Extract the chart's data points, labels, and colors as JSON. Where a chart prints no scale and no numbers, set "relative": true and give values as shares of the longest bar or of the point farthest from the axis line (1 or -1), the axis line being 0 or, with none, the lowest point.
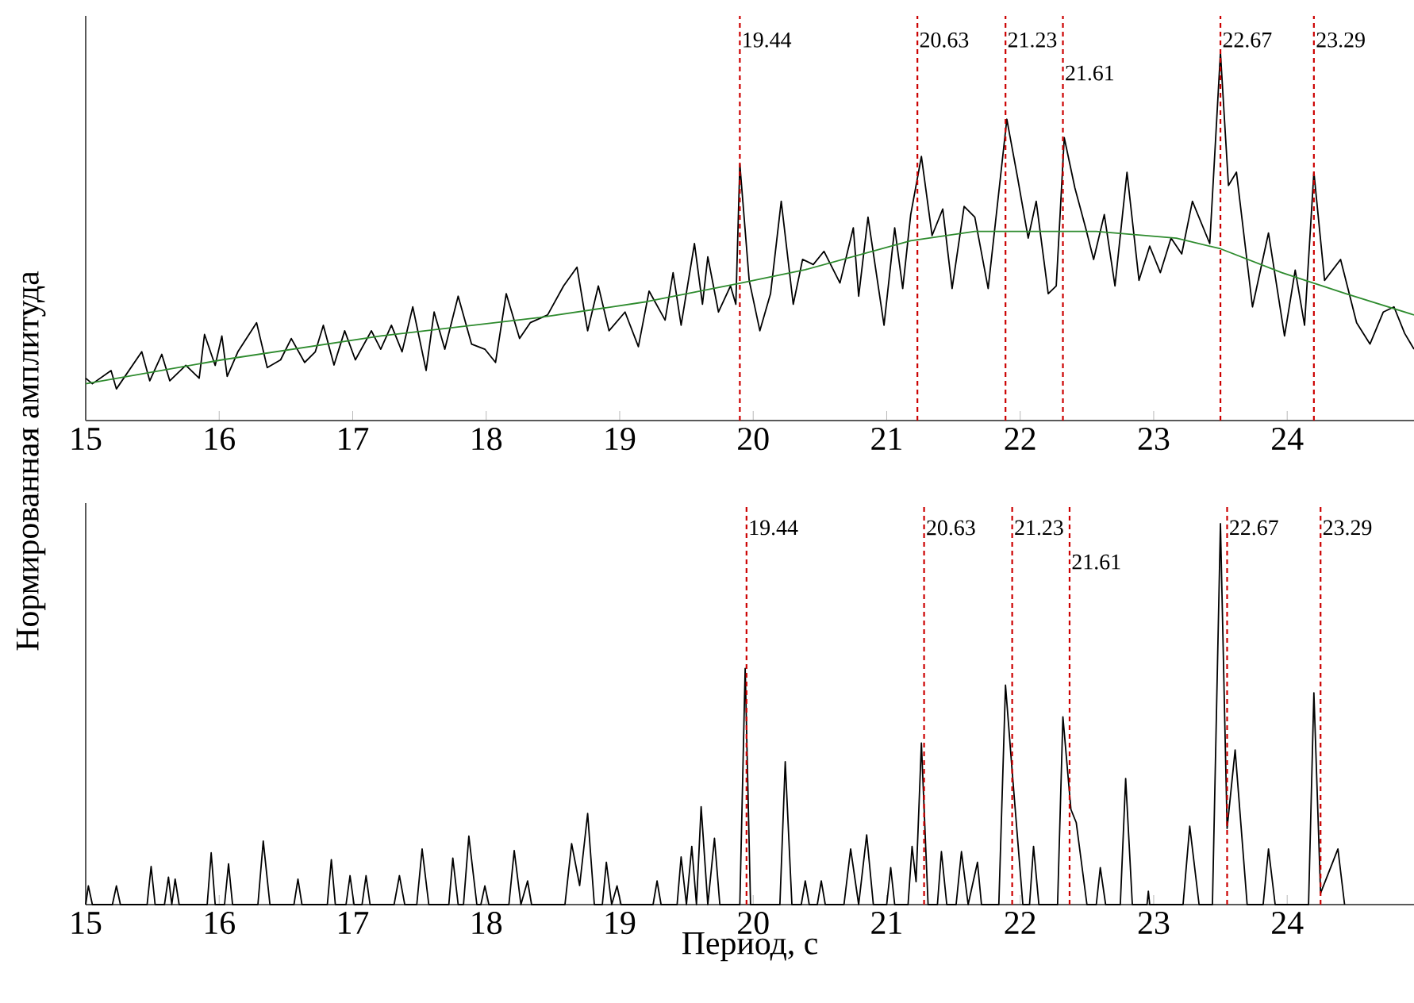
{
  "chart_data": [
    {
      "type": "line",
      "relative": true,
      "ylabel": "Нормированная амплитуда",
      "xlim": [
        15,
        24.95
      ],
      "xticks": [
        15,
        16,
        17,
        18,
        19,
        20,
        21,
        22,
        23,
        24
      ],
      "series": [
        {
          "color": "#000000",
          "x": [
            15.0,
            15.05,
            15.19,
            15.23,
            15.42,
            15.48,
            15.57,
            15.63,
            15.75,
            15.85,
            15.89,
            15.97,
            16.02,
            16.06,
            16.14,
            16.28,
            16.36,
            16.46,
            16.54,
            16.64,
            16.72,
            16.78,
            16.86,
            16.94,
            17.02,
            17.14,
            17.21,
            17.29,
            17.37,
            17.45,
            17.55,
            17.61,
            17.69,
            17.79,
            17.89,
            17.99,
            18.07,
            18.15,
            18.25,
            18.33,
            18.46,
            18.58,
            18.68,
            18.76,
            18.84,
            18.92,
            19.04,
            19.14,
            19.22,
            19.34,
            19.4,
            19.46,
            19.56,
            19.62,
            19.66,
            19.74,
            19.83,
            19.87,
            19.9,
            19.97,
            20.05,
            20.13,
            20.21,
            20.3,
            20.37,
            20.45,
            20.53,
            20.65,
            20.75,
            20.79,
            20.86,
            20.98,
            21.06,
            21.12,
            21.18,
            21.26,
            21.34,
            21.42,
            21.49,
            21.58,
            21.66,
            21.76,
            21.9,
            21.98,
            22.06,
            22.12,
            22.21,
            22.27,
            22.33,
            22.41,
            22.49,
            22.55,
            22.63,
            22.71,
            22.8,
            22.89,
            22.97,
            23.05,
            23.13,
            23.21,
            23.29,
            23.42,
            23.5,
            23.56,
            23.62,
            23.74,
            23.86,
            23.98,
            24.06,
            24.13,
            24.2,
            24.28,
            24.4,
            24.52,
            24.62,
            24.72,
            24.8,
            24.88,
            24.95
          ],
          "values": [
            0.115,
            0.1,
            0.136,
            0.086,
            0.187,
            0.108,
            0.18,
            0.108,
            0.15,
            0.115,
            0.234,
            0.15,
            0.23,
            0.12,
            0.187,
            0.266,
            0.144,
            0.165,
            0.223,
            0.158,
            0.187,
            0.259,
            0.151,
            0.244,
            0.165,
            0.244,
            0.194,
            0.259,
            0.187,
            0.309,
            0.136,
            0.295,
            0.194,
            0.338,
            0.208,
            0.194,
            0.158,
            0.345,
            0.223,
            0.266,
            0.287,
            0.366,
            0.417,
            0.244,
            0.366,
            0.244,
            0.295,
            0.201,
            0.352,
            0.273,
            0.402,
            0.259,
            0.481,
            0.316,
            0.445,
            0.295,
            0.366,
            0.316,
            0.697,
            0.381,
            0.244,
            0.345,
            0.596,
            0.316,
            0.438,
            0.424,
            0.46,
            0.374,
            0.524,
            0.338,
            0.553,
            0.259,
            0.524,
            0.359,
            0.56,
            0.718,
            0.503,
            0.575,
            0.359,
            0.582,
            0.553,
            0.359,
            0.819,
            0.661,
            0.496,
            0.596,
            0.345,
            0.366,
            0.769,
            0.632,
            0.524,
            0.438,
            0.56,
            0.366,
            0.675,
            0.381,
            0.474,
            0.402,
            0.496,
            0.453,
            0.596,
            0.481,
            1,
            0.639,
            0.675,
            0.309,
            0.51,
            0.23,
            0.409,
            0.259,
            0.675,
            0.381,
            0.438,
            0.266,
            0.208,
            0.295,
            0.309,
            0.237,
            0.194
          ]
        },
        {
          "color": "#2e8b2e",
          "x": [
            15.0,
            16.02,
            17.21,
            18.4,
            19.2,
            19.91,
            20.39,
            21.18,
            21.66,
            22.57,
            23.17,
            23.5,
            23.96,
            24.44,
            24.95
          ],
          "values": [
            0.1,
            0.165,
            0.23,
            0.28,
            0.323,
            0.374,
            0.41,
            0.489,
            0.514,
            0.514,
            0.496,
            0.467,
            0.402,
            0.345,
            0.287
          ]
        }
      ],
      "ref_lines": [
        {
          "axis": "x",
          "value": 19.9,
          "color": "#cc0000",
          "line_style": "dashed"
        },
        {
          "axis": "x",
          "value": 21.23,
          "color": "#cc0000",
          "line_style": "dashed"
        },
        {
          "axis": "x",
          "value": 21.89,
          "color": "#cc0000",
          "line_style": "dashed"
        },
        {
          "axis": "x",
          "value": 22.32,
          "color": "#cc0000",
          "line_style": "dashed"
        },
        {
          "axis": "x",
          "value": 23.5,
          "color": "#cc0000",
          "line_style": "dashed"
        },
        {
          "axis": "x",
          "value": 24.2,
          "color": "#cc0000",
          "line_style": "dashed"
        }
      ],
      "annotations": [
        "19.44",
        "20.63",
        "21.23",
        "21.61",
        "22.67",
        "23.29"
      ]
    },
    {
      "type": "line",
      "relative": true,
      "xlabel": "Период, с",
      "xlim": [
        15,
        24.95
      ],
      "xticks": [
        15,
        16,
        17,
        18,
        19,
        20,
        21,
        22,
        23,
        24
      ],
      "series": [
        {
          "color": "#000000",
          "x": [
            15.0,
            15.02,
            15.05,
            15.2,
            15.23,
            15.26,
            15.46,
            15.49,
            15.52,
            15.59,
            15.62,
            15.645,
            15.67,
            15.7,
            15.91,
            15.94,
            15.97,
            16.04,
            16.07,
            16.1,
            16.29,
            16.33,
            16.38,
            16.56,
            16.59,
            16.62,
            16.81,
            16.84,
            16.87,
            16.95,
            16.98,
            17.01,
            17.07,
            17.1,
            17.13,
            17.31,
            17.35,
            17.39,
            17.48,
            17.52,
            17.57,
            17.72,
            17.75,
            17.79,
            17.83,
            17.87,
            17.93,
            17.96,
            17.99,
            18.02,
            18.17,
            18.21,
            18.26,
            18.31,
            18.34,
            18.59,
            18.64,
            18.7,
            18.76,
            18.81,
            18.87,
            18.9,
            18.94,
            18.98,
            19.01,
            19.25,
            19.28,
            19.31,
            19.43,
            19.46,
            19.5,
            19.54,
            19.575,
            19.61,
            19.66,
            19.71,
            19.75,
            19.9,
            19.94,
            19.98,
            20.2,
            20.24,
            20.29,
            20.36,
            20.39,
            20.42,
            20.48,
            20.51,
            20.54,
            20.68,
            20.73,
            20.79,
            20.85,
            20.9,
            21.0,
            21.03,
            21.06,
            21.16,
            21.19,
            21.22,
            21.26,
            21.31,
            21.38,
            21.41,
            21.45,
            21.52,
            21.56,
            21.61,
            21.68,
            21.71,
            21.84,
            21.89,
            21.94,
            22.02,
            22.07,
            22.1,
            22.14,
            22.28,
            22.32,
            22.38,
            22.42,
            22.5,
            22.57,
            22.6,
            22.64,
            22.75,
            22.79,
            22.84,
            22.95,
            22.96,
            22.97,
            23.22,
            23.27,
            23.34,
            23.44,
            23.5,
            23.55,
            23.61,
            23.7,
            23.82,
            23.86,
            23.91,
            24.16,
            24.2,
            24.25,
            24.38,
            24.43
          ],
          "values": [
            0,
            0.049,
            0,
            0,
            0.049,
            0,
            0,
            0.1,
            0,
            0,
            0.072,
            0,
            0.067,
            0,
            0,
            0.136,
            0,
            0,
            0.107,
            0,
            0,
            0.167,
            0,
            0,
            0.067,
            0,
            0,
            0.118,
            0,
            0,
            0.076,
            0,
            0,
            0.076,
            0,
            0,
            0.076,
            0,
            0,
            0.146,
            0,
            0,
            0.122,
            0,
            0,
            0.18,
            0,
            0,
            0.049,
            0,
            0,
            0.142,
            0,
            0.062,
            0,
            0,
            0.16,
            0.05,
            0.239,
            0,
            0,
            0.111,
            0,
            0.049,
            0,
            0,
            0.062,
            0,
            0,
            0.125,
            0,
            0.153,
            0,
            0.257,
            0,
            0.174,
            0,
            0,
            0.62,
            0,
            0,
            0.375,
            0,
            0,
            0.062,
            0,
            0,
            0.062,
            0,
            0,
            0.146,
            0,
            0.183,
            0,
            0,
            0.097,
            0,
            0,
            0.153,
            0.06,
            0.424,
            0,
            0,
            0.139,
            0,
            0,
            0.139,
            0,
            0.111,
            0,
            0,
            0.576,
            0.35,
            0,
            0,
            0.153,
            0,
            0,
            0.493,
            0.25,
            0.215,
            0,
            0,
            0.097,
            0,
            0,
            0.331,
            0,
            0,
            0.035,
            0,
            0,
            0.206,
            0,
            0,
            1,
            0.2,
            0.406,
            0,
            0,
            0.146,
            0,
            0,
            0.556,
            0.03,
            0.146,
            0
          ]
        }
      ],
      "ref_lines": [
        {
          "axis": "x",
          "value": 19.95,
          "color": "#cc0000",
          "line_style": "dashed"
        },
        {
          "axis": "x",
          "value": 21.28,
          "color": "#cc0000",
          "line_style": "dashed"
        },
        {
          "axis": "x",
          "value": 21.94,
          "color": "#cc0000",
          "line_style": "dashed"
        },
        {
          "axis": "x",
          "value": 22.37,
          "color": "#cc0000",
          "line_style": "dashed"
        },
        {
          "axis": "x",
          "value": 23.55,
          "color": "#cc0000",
          "line_style": "dashed"
        },
        {
          "axis": "x",
          "value": 24.25,
          "color": "#cc0000",
          "line_style": "dashed"
        }
      ],
      "annotations": [
        "19.44",
        "20.63",
        "21.23",
        "21.61",
        "22.67",
        "23.29"
      ]
    }
  ]
}
